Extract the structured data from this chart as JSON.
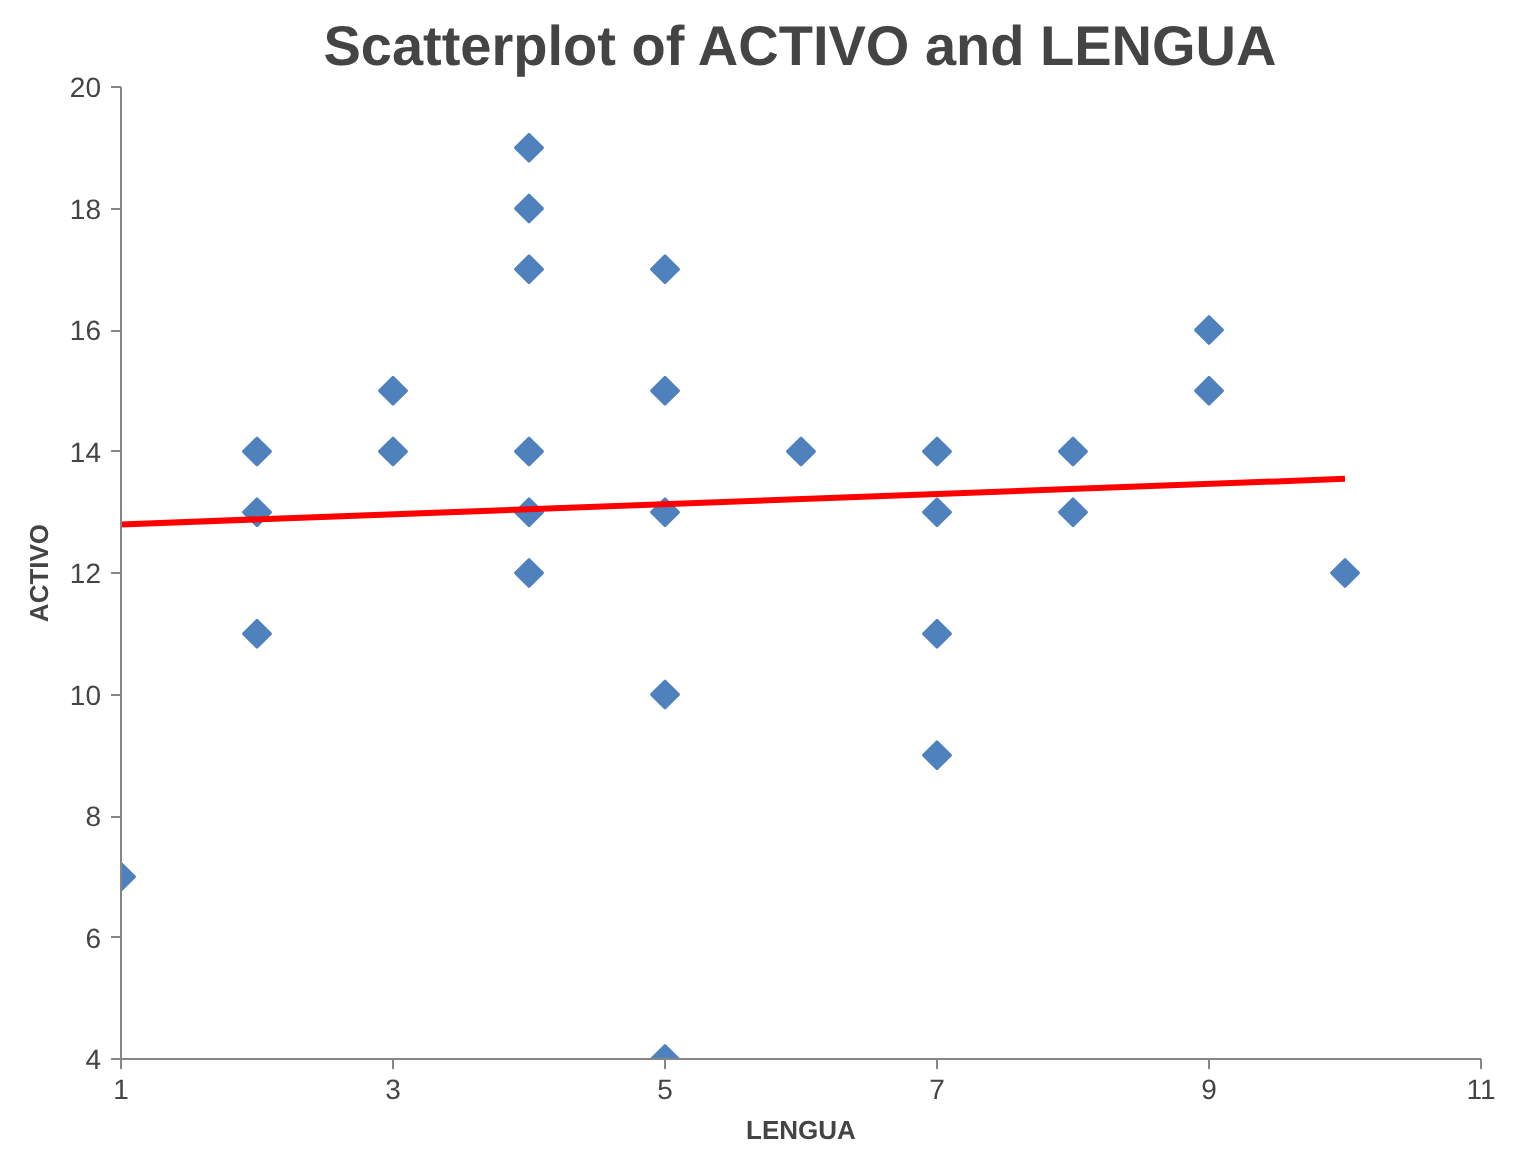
{
  "chart_data": {
    "type": "scatter",
    "title": "Scatterplot of ACTIVO and LENGUA",
    "xlabel": "LENGUA",
    "ylabel": "ACTIVO",
    "grid": false,
    "xlim": [
      1,
      11
    ],
    "xticks": [
      1,
      3,
      5,
      7,
      9,
      11
    ],
    "ylim": [
      4,
      20
    ],
    "yticks": [
      4,
      6,
      8,
      10,
      12,
      14,
      16,
      18,
      20
    ],
    "series": [
      {
        "color": "#4f81bd",
        "marker": "diamond",
        "x": [
          1,
          2,
          2,
          2,
          3,
          3,
          4,
          4,
          4,
          4,
          4,
          4,
          5,
          5,
          5,
          5,
          5,
          6,
          7,
          7,
          7,
          7,
          8,
          8,
          9,
          9,
          10
        ],
        "values": [
          7,
          14,
          13,
          11,
          15,
          14,
          19,
          18,
          17,
          14,
          13,
          12,
          17,
          15,
          13,
          10,
          4,
          14,
          14,
          13,
          11,
          9,
          14,
          13,
          16,
          15,
          12
        ]
      },
      {
        "type": "line",
        "color": "#ff0000",
        "marker": "none",
        "x": [
          1,
          10
        ],
        "values": [
          12.8,
          13.55
        ]
      }
    ]
  }
}
